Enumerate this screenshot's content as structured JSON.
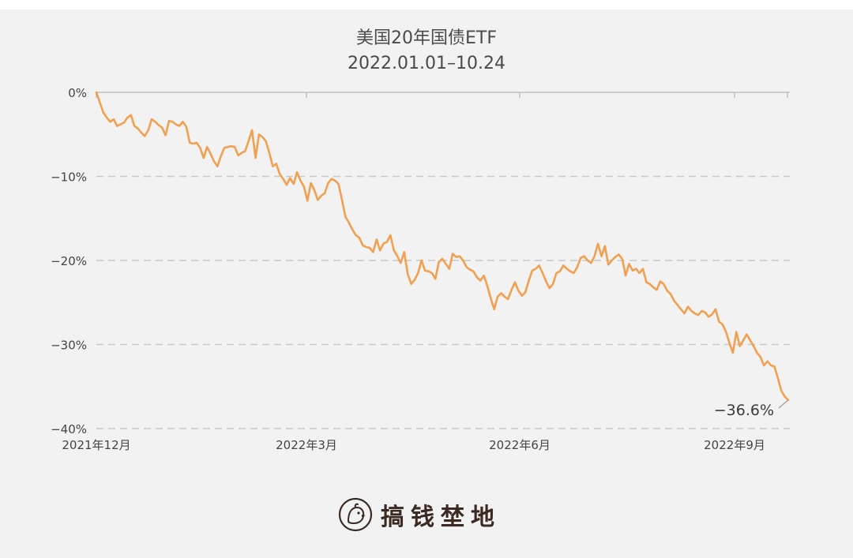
{
  "brand": {
    "name": "搞钱埜地",
    "logo_icon": "chick-logo-icon"
  },
  "colors": {
    "line": "#f0a050",
    "grid": "#c8c8c8",
    "axis": "#bfbfbf"
  },
  "chart_data": {
    "type": "line",
    "title": "美国20年国债ETF",
    "subtitle": "2022.01.01–10.24",
    "xlabel": "",
    "ylabel": "",
    "x_ticks": [
      "2021年12月",
      "2022年3月",
      "2022年6月",
      "2022年9月"
    ],
    "y_ticks": [
      "0%",
      "−10%",
      "−20%",
      "−30%",
      "−40%"
    ],
    "y_tick_values": [
      0,
      -10,
      -20,
      -30,
      -40
    ],
    "ylim": [
      -40,
      0
    ],
    "grid": "horizontal dashed",
    "annotation": {
      "text": "−36.6%",
      "value": -36.6
    },
    "series": [
      {
        "values": [
          0,
          -1.2,
          -2.4,
          -3.0,
          -3.5,
          -3.2,
          -4.0,
          -3.8,
          -3.6,
          -3.0,
          -2.7,
          -4.0,
          -4.3,
          -4.8,
          -5.2,
          -4.5,
          -3.2,
          -3.5,
          -3.9,
          -4.2,
          -5.1,
          -3.4,
          -3.5,
          -3.8,
          -4.0,
          -3.5,
          -4.1,
          -6.0,
          -6.1,
          -6.0,
          -6.6,
          -7.8,
          -6.5,
          -7.3,
          -8.2,
          -8.8,
          -7.6,
          -6.6,
          -6.5,
          -6.4,
          -6.5,
          -7.5,
          -7.2,
          -7.0,
          -5.8,
          -4.5,
          -7.8,
          -5.0,
          -5.3,
          -5.8,
          -7.2,
          -8.8,
          -8.5,
          -9.7,
          -10.3,
          -11.0,
          -10.2,
          -10.9,
          -9.5,
          -10.5,
          -11.2,
          -12.9,
          -10.8,
          -11.6,
          -12.8,
          -12.3,
          -12.0,
          -10.8,
          -10.3,
          -10.5,
          -10.9,
          -12.8,
          -14.8,
          -15.5,
          -16.3,
          -17.0,
          -17.3,
          -18.2,
          -18.4,
          -18.5,
          -19.0,
          -17.5,
          -18.8,
          -18.0,
          -17.8,
          -17.0,
          -18.8,
          -19.5,
          -20.3,
          -19.0,
          -21.6,
          -22.8,
          -22.3,
          -21.5,
          -20.0,
          -21.2,
          -21.3,
          -21.5,
          -22.2,
          -20.2,
          -19.8,
          -20.4,
          -21.0,
          -19.2,
          -19.6,
          -19.5,
          -20.0,
          -20.8,
          -21.1,
          -21.3,
          -22.0,
          -22.4,
          -21.8,
          -23.0,
          -24.5,
          -25.8,
          -24.3,
          -23.9,
          -24.3,
          -24.6,
          -23.5,
          -22.6,
          -23.6,
          -24.2,
          -23.8,
          -22.4,
          -21.2,
          -21.0,
          -20.6,
          -21.5,
          -22.5,
          -23.3,
          -22.8,
          -21.5,
          -21.3,
          -20.6,
          -21.0,
          -21.3,
          -21.5,
          -20.8,
          -19.7,
          -19.5,
          -20.0,
          -20.3,
          -19.5,
          -18.0,
          -19.5,
          -18.3,
          -20.5,
          -20.0,
          -19.6,
          -19.3,
          -19.8,
          -21.8,
          -20.4,
          -21.2,
          -21.0,
          -21.5,
          -21.0,
          -22.6,
          -22.8,
          -23.2,
          -23.5,
          -22.5,
          -22.8,
          -23.6,
          -24.0,
          -24.8,
          -25.3,
          -25.8,
          -26.3,
          -25.5,
          -26.0,
          -26.3,
          -26.5,
          -26.0,
          -26.2,
          -26.7,
          -26.4,
          -25.8,
          -27.3,
          -27.6,
          -28.5,
          -29.8,
          -31.0,
          -28.5,
          -30.2,
          -29.5,
          -28.8,
          -29.5,
          -30.2,
          -31.0,
          -31.5,
          -32.5,
          -32.0,
          -32.5,
          -32.6,
          -34.0,
          -35.5,
          -36.2,
          -36.6
        ]
      }
    ]
  }
}
